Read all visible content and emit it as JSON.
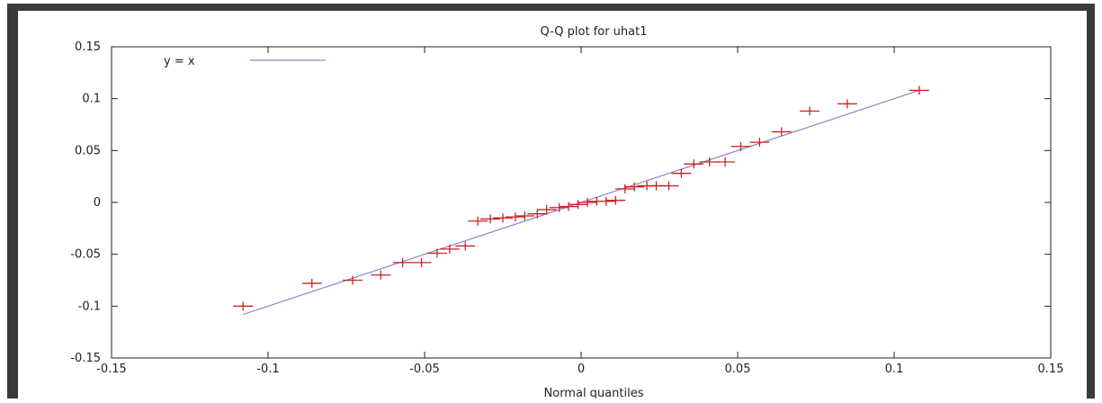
{
  "chart_data": {
    "type": "scatter",
    "title": "Q-Q plot for uhat1",
    "xlabel": "Normal quantiles",
    "ylabel": "",
    "xlim": [
      -0.15,
      0.15
    ],
    "ylim": [
      -0.15,
      0.15
    ],
    "xticks": [
      -0.15,
      -0.1,
      -0.05,
      0,
      0.05,
      0.1,
      0.15
    ],
    "yticks": [
      -0.15,
      -0.1,
      -0.05,
      0,
      0.05,
      0.1,
      0.15
    ],
    "xtick_labels": [
      "-0.15",
      "-0.1",
      "-0.05",
      "0",
      "0.05",
      "0.1",
      "0.15"
    ],
    "ytick_labels": [
      "-0.15",
      "-0.1",
      "-0.05",
      "0",
      "0.05",
      "0.1",
      "0.15"
    ],
    "grid": false,
    "legend": {
      "position": "top-left",
      "entries": [
        "y = x"
      ]
    },
    "reference_line": {
      "label": "y = x",
      "color": "#8888cc",
      "from": [
        -0.108,
        -0.108
      ],
      "to": [
        0.108,
        0.108
      ]
    },
    "marker_color": "#cc2222",
    "points": [
      [
        -0.108,
        -0.1
      ],
      [
        -0.086,
        -0.078
      ],
      [
        -0.073,
        -0.075
      ],
      [
        -0.064,
        -0.07
      ],
      [
        -0.057,
        -0.058
      ],
      [
        -0.051,
        -0.058
      ],
      [
        -0.046,
        -0.049
      ],
      [
        -0.042,
        -0.045
      ],
      [
        -0.037,
        -0.042
      ],
      [
        -0.033,
        -0.018
      ],
      [
        -0.029,
        -0.016
      ],
      [
        -0.025,
        -0.015
      ],
      [
        -0.021,
        -0.014
      ],
      [
        -0.018,
        -0.013
      ],
      [
        -0.014,
        -0.011
      ],
      [
        -0.011,
        -0.007
      ],
      [
        -0.007,
        -0.005
      ],
      [
        -0.004,
        -0.004
      ],
      [
        -0.001,
        -0.002
      ],
      [
        0.002,
        0.0
      ],
      [
        0.005,
        0.001
      ],
      [
        0.008,
        0.001
      ],
      [
        0.011,
        0.002
      ],
      [
        0.014,
        0.013
      ],
      [
        0.017,
        0.015
      ],
      [
        0.021,
        0.016
      ],
      [
        0.024,
        0.016
      ],
      [
        0.028,
        0.016
      ],
      [
        0.032,
        0.028
      ],
      [
        0.036,
        0.037
      ],
      [
        0.041,
        0.039
      ],
      [
        0.046,
        0.039
      ],
      [
        0.051,
        0.054
      ],
      [
        0.057,
        0.058
      ],
      [
        0.064,
        0.068
      ],
      [
        0.073,
        0.088
      ],
      [
        0.085,
        0.095
      ],
      [
        0.108,
        0.108
      ]
    ]
  }
}
